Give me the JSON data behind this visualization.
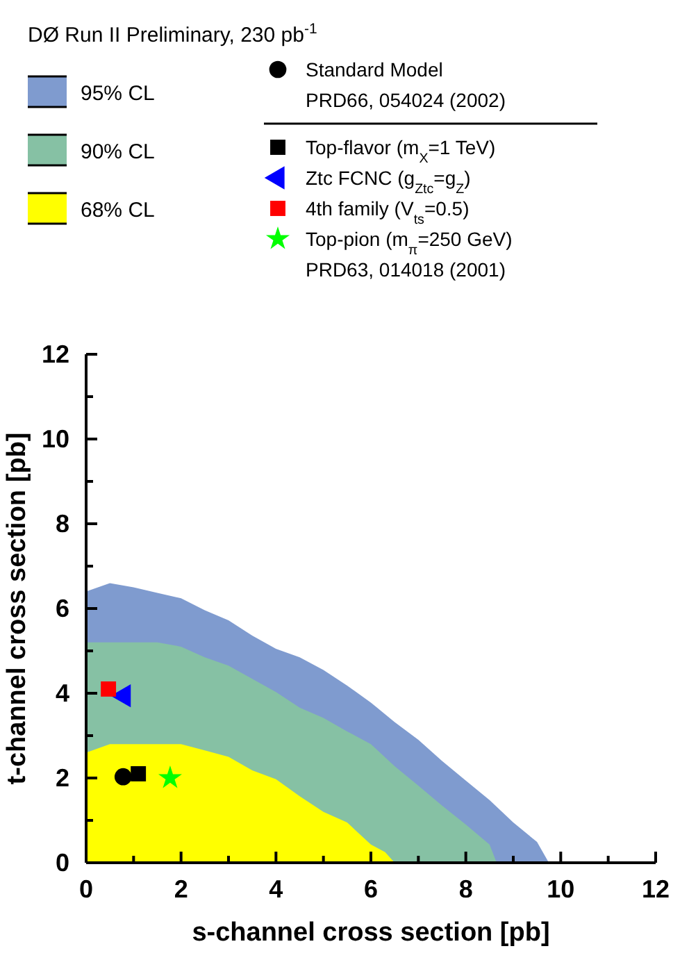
{
  "chart_data": {
    "type": "area",
    "title": "DØ Run II Preliminary, 230 pb$^{-1}$",
    "xlabel": "s-channel cross section [pb]",
    "ylabel": "t-channel cross section [pb]",
    "xlim": [
      0,
      12
    ],
    "ylim": [
      0,
      12
    ],
    "xticks": [
      0,
      {
        "value": 1,
        "label": null
      },
      2,
      {
        "value": 3,
        "label": null
      },
      4,
      {
        "value": 5,
        "label": null
      },
      6,
      {
        "value": 7,
        "label": null
      },
      8,
      {
        "value": 9,
        "label": null
      },
      10,
      {
        "value": 11,
        "label": null
      },
      12
    ],
    "yticks": [
      0,
      {
        "value": 1,
        "label": null
      },
      2,
      {
        "value": 3,
        "label": null
      },
      4,
      {
        "value": 5,
        "label": null
      },
      6,
      {
        "value": 7,
        "label": null
      },
      8,
      {
        "value": 9,
        "label": null
      },
      10,
      {
        "value": 11,
        "label": null
      },
      12
    ],
    "grid": false,
    "legend": "top",
    "series": [
      {
        "name": "95% CL",
        "color": "#7f9bcf",
        "x": [
          0,
          0.5,
          1,
          1.5,
          2,
          2.5,
          3,
          3.5,
          4,
          4.5,
          5,
          5.5,
          6,
          6.5,
          7,
          7.5,
          8,
          8.5,
          9,
          9.5,
          9.75
        ],
        "values": [
          6.4,
          6.6,
          6.5,
          6.37,
          6.24,
          5.96,
          5.72,
          5.36,
          5.05,
          4.85,
          4.55,
          4.18,
          3.78,
          3.32,
          2.9,
          2.4,
          1.94,
          1.48,
          0.95,
          0.49,
          0
        ]
      },
      {
        "name": "90% CL",
        "color": "#86c1a4",
        "x": [
          0,
          0.5,
          1,
          1.5,
          2,
          2.5,
          3,
          3.5,
          4,
          4.5,
          5,
          5.5,
          6,
          6.5,
          7,
          7.5,
          8,
          8.5,
          8.65
        ],
        "values": [
          5.2,
          5.2,
          5.2,
          5.2,
          5.1,
          4.85,
          4.65,
          4.34,
          4.03,
          3.66,
          3.42,
          3.1,
          2.8,
          2.28,
          1.82,
          1.35,
          0.9,
          0.43,
          0
        ]
      },
      {
        "name": "68% CL",
        "color": "#ffff00",
        "x": [
          0,
          0.5,
          1,
          1.5,
          2,
          2.5,
          3,
          3.5,
          4,
          4.5,
          5,
          5.5,
          6,
          6.3,
          6.5
        ],
        "values": [
          2.6,
          2.8,
          2.8,
          2.8,
          2.8,
          2.65,
          2.5,
          2.18,
          1.97,
          1.57,
          1.2,
          0.95,
          0.43,
          0.25,
          0
        ]
      },
      {
        "name": "Standard Model",
        "type": "scatter",
        "marker": "circle",
        "color": "#000000",
        "x": [
          0.78
        ],
        "values": [
          2.03
        ]
      },
      {
        "name": "Top-flavor  (m$_{X}$=1 TeV)",
        "type": "scatter",
        "marker": "square",
        "color": "#000000",
        "x": [
          1.1
        ],
        "values": [
          2.1
        ]
      },
      {
        "name": "Ztc FCNC  (g$_{Ztc}$=g$_{Z}$)",
        "type": "scatter",
        "marker": "triangle",
        "color": "#0000ff",
        "x": [
          0.8
        ],
        "values": [
          3.94
        ]
      },
      {
        "name": "4th family  (V$_{ts}$=0.5)",
        "type": "scatter",
        "marker": "square",
        "color": "#ff0000",
        "x": [
          0.47
        ],
        "values": [
          4.1
        ]
      },
      {
        "name": "Top-pion  (m$_{π}$=250 GeV)",
        "type": "scatter",
        "marker": "star",
        "color": "#00ff00",
        "x": [
          1.77
        ],
        "values": [
          2.0
        ]
      }
    ],
    "annotations": [
      "PRD66, 054024 (2002)",
      "PRD63, 014018 (2001)"
    ]
  }
}
